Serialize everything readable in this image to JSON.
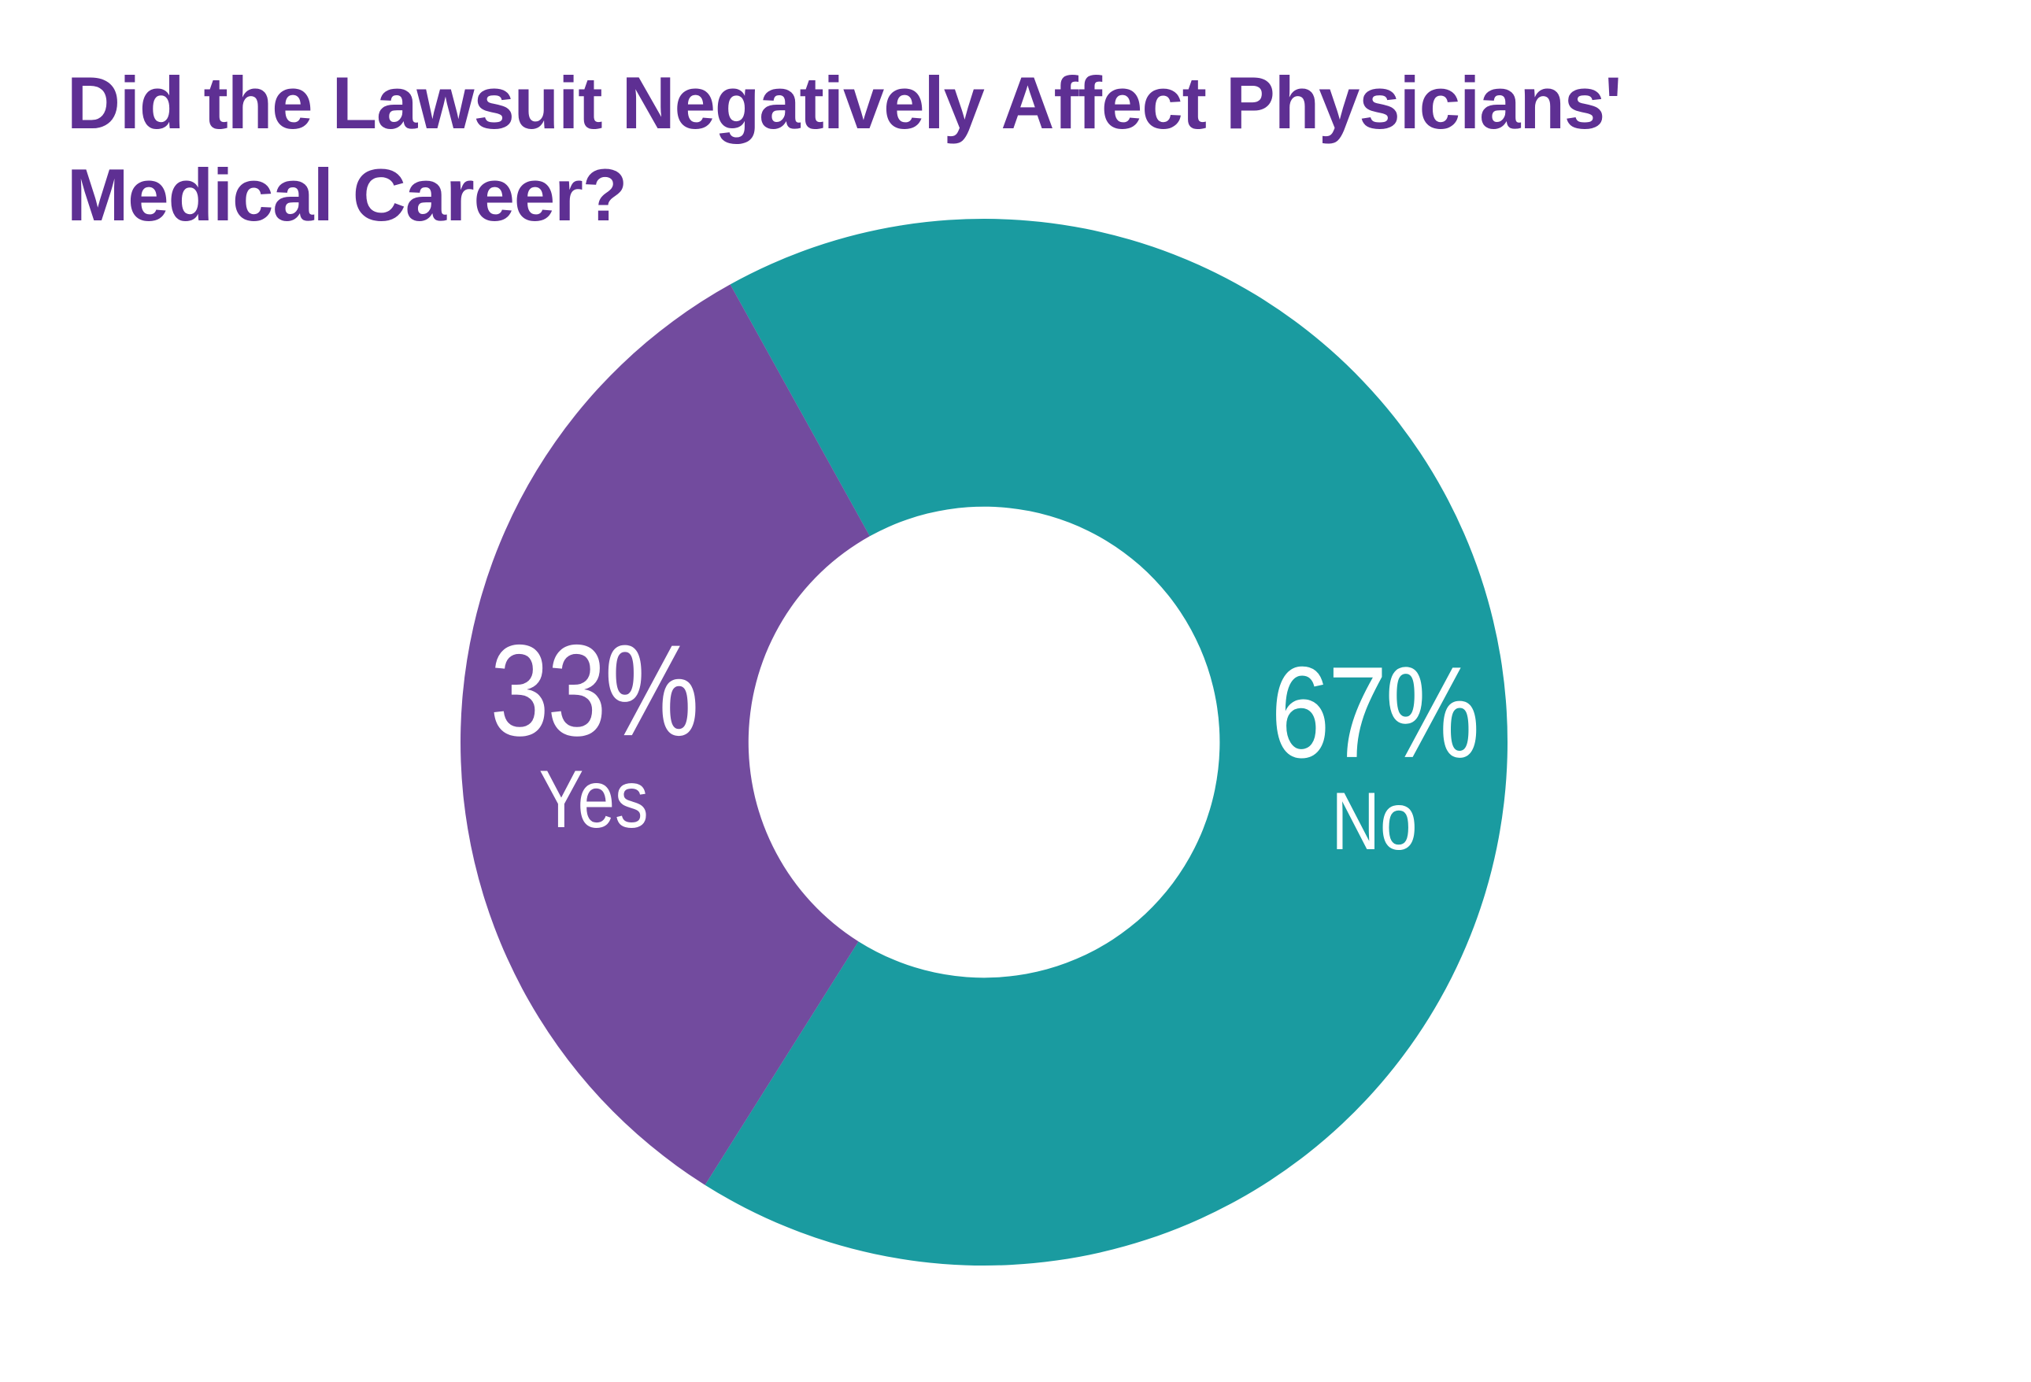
{
  "page": {
    "background": "#FFFFFF",
    "title_color": "#5E2F93",
    "title_lines": [
      "Did the Lawsuit Negatively Affect Physicians'",
      "Medical Career?"
    ]
  },
  "chart_data": {
    "type": "pie",
    "subtype": "donut",
    "title": "Did the Lawsuit Negatively Affect Physicians' Medical Career?",
    "categories": [
      "Yes",
      "No"
    ],
    "values": [
      33,
      67
    ],
    "unit": "%",
    "slices": [
      {
        "label": "No",
        "value": 67,
        "display": "67%",
        "color": "#1A9BA0",
        "label_color": "#FFFFFF"
      },
      {
        "label": "Yes",
        "value": 33,
        "display": "33%",
        "color": "#724B9E",
        "label_color": "#FFFFFF"
      }
    ],
    "layout": {
      "start_angle_deg": -29,
      "direction": "clockwise",
      "inner_radius_ratio": 0.45,
      "labels_position": "inside",
      "legend": false,
      "grid": false
    }
  }
}
